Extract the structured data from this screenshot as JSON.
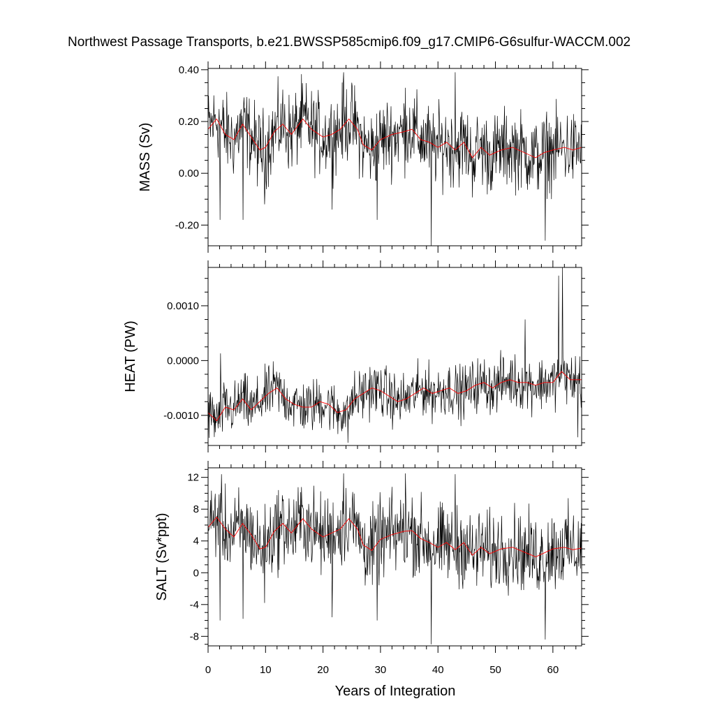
{
  "title": "Northwest Passage Transports, b.e21.BWSSP585cmip6.f09_g17.CMIP6-G6sulfur-WACCM.002",
  "xlabel": "Years of Integration",
  "colors": {
    "raw": "#000000",
    "smoothed": "#ff0000",
    "frame": "#000000"
  },
  "chart_data": [
    {
      "type": "line",
      "panel": "mass",
      "ylabel": "MASS (Sv)",
      "xlim": [
        0,
        65
      ],
      "ylim": [
        -0.28,
        0.405
      ],
      "xticks": [
        0,
        10,
        20,
        30,
        40,
        50,
        60
      ],
      "yticks": [
        -0.2,
        0.0,
        0.2,
        0.4
      ],
      "ytick_labels": [
        "-0.20",
        "0.00",
        "0.20",
        "0.40"
      ],
      "series_style": "monthly values (black) with running mean (red)",
      "smoothed_anchors": {
        "x": [
          0,
          1.5,
          3,
          4.5,
          6,
          7.5,
          9,
          10,
          11.5,
          13,
          14.5,
          16.5,
          18,
          20,
          21.5,
          23,
          24.5,
          26,
          27,
          28.5,
          30,
          32,
          34,
          35.5,
          37,
          38.5,
          40,
          41.5,
          43,
          44.5,
          46,
          47.5,
          49,
          51,
          53,
          55,
          57,
          58.5,
          60,
          62,
          63.5,
          65
        ],
        "y": [
          0.17,
          0.21,
          0.15,
          0.13,
          0.19,
          0.14,
          0.09,
          0.1,
          0.16,
          0.19,
          0.15,
          0.21,
          0.17,
          0.14,
          0.15,
          0.17,
          0.21,
          0.17,
          0.11,
          0.09,
          0.13,
          0.15,
          0.16,
          0.17,
          0.13,
          0.12,
          0.1,
          0.12,
          0.09,
          0.12,
          0.06,
          0.1,
          0.07,
          0.09,
          0.1,
          0.08,
          0.06,
          0.08,
          0.09,
          0.1,
          0.09,
          0.1
        ]
      },
      "noise_amplitude": 0.075,
      "spikes": [
        {
          "x": 2.1,
          "y": -0.18
        },
        {
          "x": 6.1,
          "y": -0.18
        },
        {
          "x": 9.8,
          "y": -0.12
        },
        {
          "x": 21.6,
          "y": -0.14
        },
        {
          "x": 23.6,
          "y": 0.39
        },
        {
          "x": 29.4,
          "y": -0.18
        },
        {
          "x": 34.3,
          "y": 0.33
        },
        {
          "x": 38.8,
          "y": -0.28
        },
        {
          "x": 43.0,
          "y": 0.39
        },
        {
          "x": 58.7,
          "y": -0.26
        }
      ]
    },
    {
      "type": "line",
      "panel": "heat",
      "ylabel": "HEAT (PW)",
      "xlim": [
        0,
        65
      ],
      "ylim": [
        -0.00155,
        0.0017
      ],
      "xticks": [
        0,
        10,
        20,
        30,
        40,
        50,
        60
      ],
      "yticks": [
        -0.001,
        0.0,
        0.001
      ],
      "ytick_labels": [
        "-0.0010",
        "0.0000",
        "0.0010"
      ],
      "series_style": "monthly values (black) with running mean (red)",
      "smoothed_anchors": {
        "x": [
          0,
          1.5,
          3,
          4.5,
          6,
          7.5,
          9,
          10.5,
          12,
          13.5,
          15,
          16.5,
          18,
          19.5,
          21,
          22.5,
          24,
          25.5,
          27,
          28.5,
          30,
          31.5,
          33,
          34.5,
          36,
          37.5,
          39,
          40.5,
          42,
          43.5,
          45,
          46.5,
          48,
          49.5,
          51,
          52.5,
          54,
          55.5,
          57,
          58.5,
          60,
          61.5,
          63,
          65
        ],
        "y": [
          -0.00095,
          -0.0011,
          -0.00085,
          -0.0009,
          -0.0007,
          -0.0009,
          -0.00075,
          -0.0006,
          -0.0005,
          -0.0007,
          -0.0008,
          -0.00085,
          -0.00085,
          -0.00075,
          -0.0008,
          -0.00095,
          -0.0009,
          -0.0007,
          -0.0006,
          -0.0005,
          -0.00055,
          -0.00065,
          -0.00075,
          -0.0007,
          -0.0006,
          -0.0005,
          -0.0006,
          -0.00055,
          -0.0005,
          -0.0006,
          -0.00055,
          -0.00045,
          -0.0004,
          -0.0005,
          -0.0004,
          -0.00035,
          -0.0004,
          -0.0004,
          -0.00045,
          -0.0004,
          -0.0004,
          -0.0002,
          -0.00035,
          -0.00035
        ]
      },
      "noise_amplitude": 0.00024,
      "spikes": [
        {
          "x": 2.2,
          "y": 0.00013
        },
        {
          "x": 24.3,
          "y": -0.0015
        },
        {
          "x": 55.2,
          "y": 0.00075
        },
        {
          "x": 61.0,
          "y": 0.00155
        },
        {
          "x": 61.7,
          "y": 0.00175
        },
        {
          "x": 64.3,
          "y": -0.0014
        }
      ]
    },
    {
      "type": "line",
      "panel": "salt",
      "ylabel": "SALT (Sv*ppt)",
      "xlim": [
        0,
        65
      ],
      "ylim": [
        -9.2,
        13.2
      ],
      "xticks": [
        0,
        10,
        20,
        30,
        40,
        50,
        60
      ],
      "yticks": [
        -8,
        -4,
        0,
        4,
        8,
        12
      ],
      "ytick_labels": [
        "-8",
        "-4",
        "0",
        "4",
        "8",
        "12"
      ],
      "series_style": "monthly values (black) with running mean (red)",
      "smoothed_anchors": {
        "x": [
          0,
          1.5,
          3,
          4.5,
          6,
          7.5,
          9,
          10,
          11.5,
          13,
          14.5,
          16.5,
          18,
          20,
          21.5,
          23,
          24.5,
          26,
          27,
          28.5,
          30,
          32,
          34,
          35.5,
          37,
          38.5,
          40,
          41.5,
          43,
          44.5,
          46,
          47.5,
          49,
          51,
          53,
          55,
          57,
          58.5,
          60,
          62,
          63.5,
          65
        ],
        "y": [
          5.7,
          7.0,
          5.5,
          4.5,
          6.2,
          4.8,
          3.0,
          3.2,
          5.2,
          6.2,
          5.0,
          6.8,
          5.5,
          4.5,
          5.0,
          5.5,
          6.8,
          5.5,
          3.5,
          2.8,
          4.2,
          4.8,
          5.2,
          5.3,
          4.3,
          3.8,
          3.2,
          3.8,
          2.9,
          3.8,
          2.2,
          3.2,
          2.4,
          3.0,
          3.2,
          2.6,
          2.0,
          2.5,
          3.0,
          3.2,
          2.9,
          3.1
        ]
      },
      "noise_amplitude": 2.5,
      "spikes": [
        {
          "x": 2.1,
          "y": -6.0
        },
        {
          "x": 6.1,
          "y": -5.8
        },
        {
          "x": 9.8,
          "y": -3.8
        },
        {
          "x": 21.6,
          "y": -5.6
        },
        {
          "x": 23.6,
          "y": 12.5
        },
        {
          "x": 29.4,
          "y": -6.0
        },
        {
          "x": 34.3,
          "y": 12.5
        },
        {
          "x": 38.8,
          "y": -9.0
        },
        {
          "x": 43.0,
          "y": 12.4
        },
        {
          "x": 58.7,
          "y": -8.4
        }
      ]
    }
  ]
}
